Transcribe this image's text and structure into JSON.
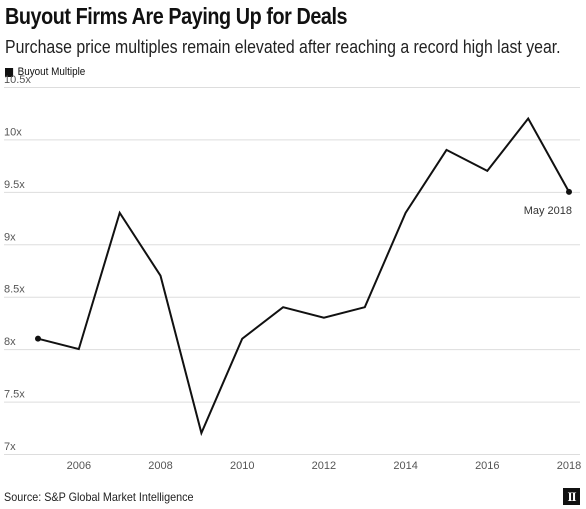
{
  "header": {
    "title": "Buyout Firms Are Paying Up for Deals",
    "subtitle": "Purchase price multiples remain elevated after reaching a record high last year."
  },
  "footer": {
    "source": "Source: S&P Global Market Intelligence",
    "logo_text": "II"
  },
  "colors": {
    "line": "#111111",
    "grid": "#dddddd",
    "axis_text": "#555555"
  },
  "chart_data": {
    "type": "line",
    "title": "Buyout Firms Are Paying Up for Deals",
    "subtitle": "Purchase price multiples remain elevated after reaching a record high last year.",
    "xlabel": "",
    "ylabel": "",
    "legend": {
      "position": "top-left",
      "entries": [
        "Buyout Multiple"
      ]
    },
    "grid": true,
    "xlim": [
      2005,
      2018
    ],
    "ylim": [
      7,
      10.5
    ],
    "x_ticks": [
      2006,
      2008,
      2010,
      2012,
      2014,
      2016,
      2018
    ],
    "x_tick_labels": [
      "2006",
      "2008",
      "2010",
      "2012",
      "2014",
      "2016",
      "2018"
    ],
    "y_ticks": [
      7,
      7.5,
      8,
      8.5,
      9,
      9.5,
      10,
      10.5
    ],
    "y_tick_labels": [
      "7x",
      "7.5x",
      "8x",
      "8.5x",
      "9x",
      "9.5x",
      "10x",
      "10.5x"
    ],
    "series": [
      {
        "name": "Buyout Multiple",
        "x": [
          2005,
          2006,
          2007,
          2008,
          2009,
          2010,
          2011,
          2012,
          2013,
          2014,
          2015,
          2016,
          2017,
          2018
        ],
        "values": [
          8.1,
          8.0,
          9.3,
          8.7,
          7.2,
          8.1,
          8.4,
          8.3,
          8.4,
          9.3,
          9.9,
          9.7,
          10.2,
          9.5
        ]
      }
    ],
    "annotations": [
      {
        "text": "May 2018",
        "x": 2018,
        "y": 9.5
      }
    ]
  }
}
